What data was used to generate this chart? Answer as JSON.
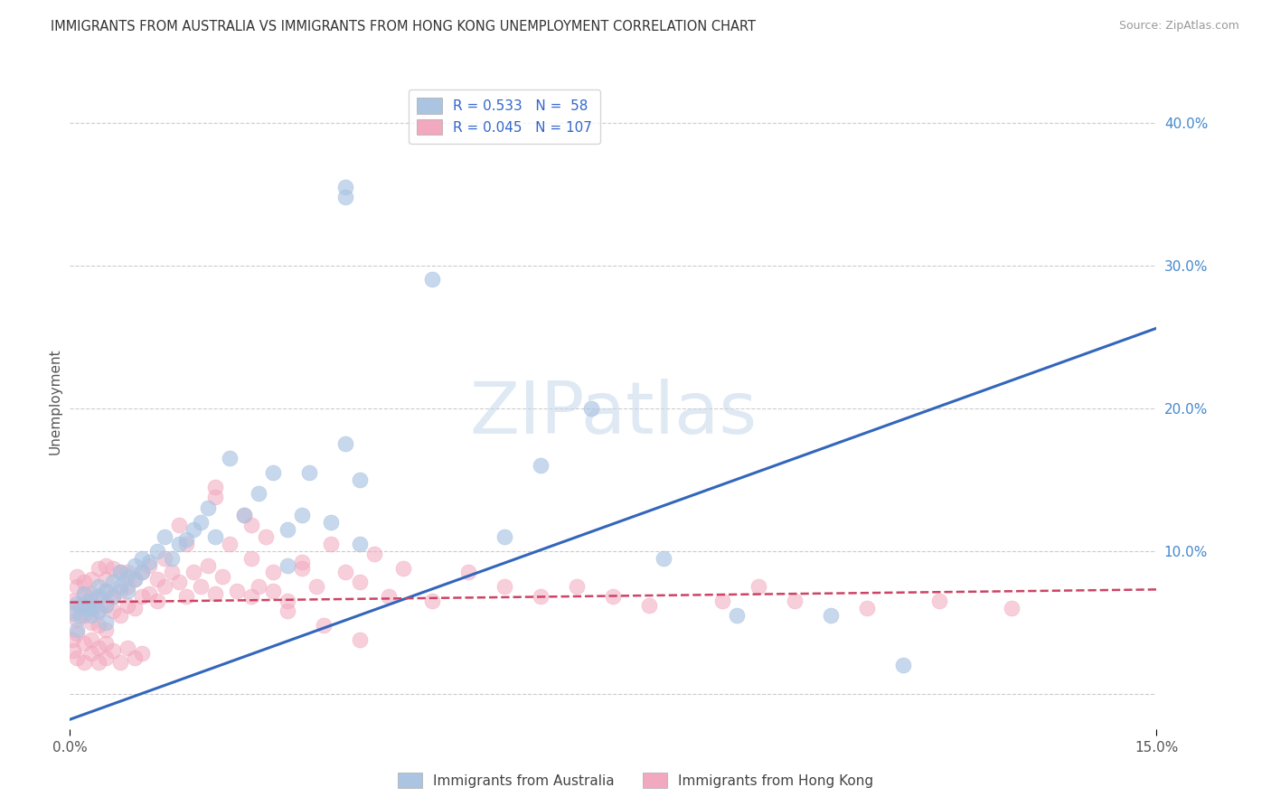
{
  "title": "IMMIGRANTS FROM AUSTRALIA VS IMMIGRANTS FROM HONG KONG UNEMPLOYMENT CORRELATION CHART",
  "source": "Source: ZipAtlas.com",
  "ylabel": "Unemployment",
  "y_ticks": [
    0.0,
    0.1,
    0.2,
    0.3,
    0.4
  ],
  "xlim": [
    0.0,
    0.15
  ],
  "ylim": [
    -0.025,
    0.435
  ],
  "australia_R": 0.533,
  "australia_N": 58,
  "hk_R": 0.045,
  "hk_N": 107,
  "australia_color": "#aac4e2",
  "hk_color": "#f2a8be",
  "australia_line_color": "#3366bb",
  "hk_line_color": "#cc4466",
  "watermark": "ZIPatlas",
  "legend_label_australia": "Immigrants from Australia",
  "legend_label_hk": "Immigrants from Hong Kong",
  "australia_scatter_x": [
    0.0005,
    0.001,
    0.001,
    0.0015,
    0.002,
    0.002,
    0.0025,
    0.003,
    0.003,
    0.003,
    0.004,
    0.004,
    0.004,
    0.005,
    0.005,
    0.005,
    0.006,
    0.006,
    0.007,
    0.007,
    0.008,
    0.008,
    0.009,
    0.009,
    0.01,
    0.01,
    0.011,
    0.012,
    0.013,
    0.014,
    0.015,
    0.016,
    0.017,
    0.018,
    0.019,
    0.02,
    0.022,
    0.024,
    0.026,
    0.028,
    0.03,
    0.033,
    0.036,
    0.038,
    0.04,
    0.03,
    0.032,
    0.04,
    0.05,
    0.06,
    0.065,
    0.072,
    0.082,
    0.092,
    0.105,
    0.115,
    0.038,
    0.038
  ],
  "australia_scatter_y": [
    0.056,
    0.045,
    0.063,
    0.055,
    0.062,
    0.07,
    0.06,
    0.055,
    0.065,
    0.06,
    0.058,
    0.068,
    0.075,
    0.062,
    0.072,
    0.05,
    0.068,
    0.078,
    0.075,
    0.085,
    0.072,
    0.082,
    0.08,
    0.09,
    0.085,
    0.095,
    0.092,
    0.1,
    0.11,
    0.095,
    0.105,
    0.108,
    0.115,
    0.12,
    0.13,
    0.11,
    0.165,
    0.125,
    0.14,
    0.155,
    0.09,
    0.155,
    0.12,
    0.175,
    0.15,
    0.115,
    0.125,
    0.105,
    0.29,
    0.11,
    0.16,
    0.2,
    0.095,
    0.055,
    0.055,
    0.02,
    0.355,
    0.348
  ],
  "hk_scatter_x": [
    0.0003,
    0.0005,
    0.001,
    0.001,
    0.001,
    0.0015,
    0.002,
    0.002,
    0.002,
    0.0025,
    0.003,
    0.003,
    0.003,
    0.003,
    0.004,
    0.004,
    0.004,
    0.004,
    0.005,
    0.005,
    0.005,
    0.005,
    0.005,
    0.006,
    0.006,
    0.006,
    0.007,
    0.007,
    0.007,
    0.008,
    0.008,
    0.008,
    0.009,
    0.009,
    0.01,
    0.01,
    0.011,
    0.011,
    0.012,
    0.012,
    0.013,
    0.013,
    0.014,
    0.015,
    0.016,
    0.016,
    0.017,
    0.018,
    0.019,
    0.02,
    0.021,
    0.022,
    0.023,
    0.024,
    0.025,
    0.026,
    0.027,
    0.028,
    0.03,
    0.032,
    0.034,
    0.036,
    0.038,
    0.04,
    0.042,
    0.044,
    0.046,
    0.05,
    0.055,
    0.06,
    0.065,
    0.07,
    0.075,
    0.08,
    0.09,
    0.095,
    0.1,
    0.11,
    0.12,
    0.13,
    0.0003,
    0.0005,
    0.001,
    0.001,
    0.002,
    0.002,
    0.003,
    0.003,
    0.004,
    0.004,
    0.005,
    0.005,
    0.006,
    0.007,
    0.008,
    0.009,
    0.01,
    0.015,
    0.02,
    0.025,
    0.03,
    0.035,
    0.04,
    0.02,
    0.025,
    0.028,
    0.032
  ],
  "hk_scatter_y": [
    0.065,
    0.058,
    0.075,
    0.052,
    0.082,
    0.062,
    0.07,
    0.055,
    0.078,
    0.065,
    0.06,
    0.07,
    0.05,
    0.08,
    0.058,
    0.068,
    0.048,
    0.088,
    0.062,
    0.072,
    0.045,
    0.08,
    0.09,
    0.058,
    0.068,
    0.088,
    0.055,
    0.072,
    0.085,
    0.062,
    0.075,
    0.085,
    0.06,
    0.08,
    0.068,
    0.085,
    0.07,
    0.09,
    0.065,
    0.08,
    0.075,
    0.095,
    0.085,
    0.078,
    0.068,
    0.105,
    0.085,
    0.075,
    0.09,
    0.07,
    0.082,
    0.105,
    0.072,
    0.125,
    0.095,
    0.075,
    0.11,
    0.085,
    0.065,
    0.092,
    0.075,
    0.105,
    0.085,
    0.078,
    0.098,
    0.068,
    0.088,
    0.065,
    0.085,
    0.075,
    0.068,
    0.075,
    0.068,
    0.062,
    0.065,
    0.075,
    0.065,
    0.06,
    0.065,
    0.06,
    0.038,
    0.03,
    0.042,
    0.025,
    0.035,
    0.022,
    0.038,
    0.028,
    0.032,
    0.022,
    0.035,
    0.025,
    0.03,
    0.022,
    0.032,
    0.025,
    0.028,
    0.118,
    0.138,
    0.068,
    0.058,
    0.048,
    0.038,
    0.145,
    0.118,
    0.072,
    0.088
  ],
  "aus_line_x0": 0.0,
  "aus_line_y0": -0.018,
  "aus_line_x1": 0.15,
  "aus_line_y1": 0.256,
  "hk_line_x0": 0.0,
  "hk_line_y0": 0.064,
  "hk_line_x1": 0.15,
  "hk_line_y1": 0.073
}
